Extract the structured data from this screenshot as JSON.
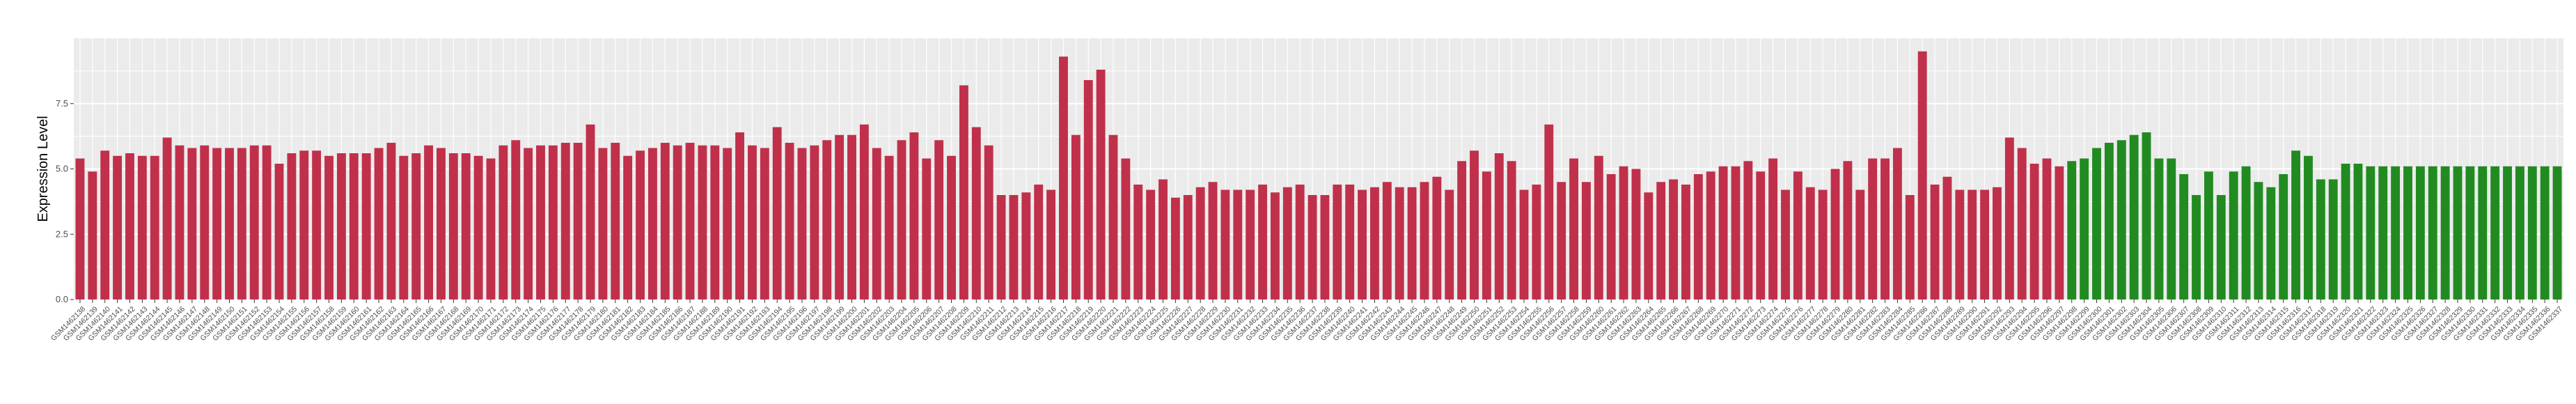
{
  "chart_data": {
    "type": "bar",
    "title": "",
    "xlabel": "",
    "ylabel": "Expression Level",
    "ylim": [
      0,
      10
    ],
    "yticks": [
      "0.0",
      "2.5",
      "5.0",
      "7.5"
    ],
    "grid": true,
    "legend": "none",
    "colors": {
      "group_red": "#c0304a",
      "group_green": "#218b21",
      "panel": "#ebebeb",
      "grid": "#ffffff"
    },
    "categories": [
      "GSM1462138",
      "GSM1462139",
      "GSM1462140",
      "GSM1462141",
      "GSM1462142",
      "GSM1462143",
      "GSM1462144",
      "GSM1462145",
      "GSM1462146",
      "GSM1462147",
      "GSM1462148",
      "GSM1462149",
      "GSM1462150",
      "GSM1462151",
      "GSM1462152",
      "GSM1462153",
      "GSM1462154",
      "GSM1462155",
      "GSM1462156",
      "GSM1462157",
      "GSM1462158",
      "GSM1462159",
      "GSM1462160",
      "GSM1462161",
      "GSM1462162",
      "GSM1462163",
      "GSM1462164",
      "GSM1462165",
      "GSM1462166",
      "GSM1462167",
      "GSM1462168",
      "GSM1462169",
      "GSM1462170",
      "GSM1462171",
      "GSM1462172",
      "GSM1462173",
      "GSM1462174",
      "GSM1462175",
      "GSM1462176",
      "GSM1462177",
      "GSM1462178",
      "GSM1462179",
      "GSM1462180",
      "GSM1462181",
      "GSM1462182",
      "GSM1462183",
      "GSM1462184",
      "GSM1462185",
      "GSM1462186",
      "GSM1462187",
      "GSM1462188",
      "GSM1462189",
      "GSM1462190",
      "GSM1462191",
      "GSM1462192",
      "GSM1462193",
      "GSM1462194",
      "GSM1462195",
      "GSM1462196",
      "GSM1462197",
      "GSM1462198",
      "GSM1462199",
      "GSM1462200",
      "GSM1462201",
      "GSM1462202",
      "GSM1462203",
      "GSM1462204",
      "GSM1462205",
      "GSM1462206",
      "GSM1462207",
      "GSM1462208",
      "GSM1462209",
      "GSM1462210",
      "GSM1462211",
      "GSM1462212",
      "GSM1462213",
      "GSM1462214",
      "GSM1462215",
      "GSM1462216",
      "GSM1462217",
      "GSM1462218",
      "GSM1462219",
      "GSM1462220",
      "GSM1462221",
      "GSM1462222",
      "GSM1462223",
      "GSM1462224",
      "GSM1462225",
      "GSM1462226",
      "GSM1462227",
      "GSM1462228",
      "GSM1462229",
      "GSM1462230",
      "GSM1462231",
      "GSM1462232",
      "GSM1462233",
      "GSM1462234",
      "GSM1462235",
      "GSM1462236",
      "GSM1462237",
      "GSM1462238",
      "GSM1462239",
      "GSM1462240",
      "GSM1462241",
      "GSM1462242",
      "GSM1462243",
      "GSM1462244",
      "GSM1462245",
      "GSM1462246",
      "GSM1462247",
      "GSM1462248",
      "GSM1462249",
      "GSM1462250",
      "GSM1462251",
      "GSM1462252",
      "GSM1462253",
      "GSM1462254",
      "GSM1462255",
      "GSM1462256",
      "GSM1462257",
      "GSM1462258",
      "GSM1462259",
      "GSM1462260",
      "GSM1462261",
      "GSM1462262",
      "GSM1462263",
      "GSM1462264",
      "GSM1462265",
      "GSM1462266",
      "GSM1462267",
      "GSM1462268",
      "GSM1462269",
      "GSM1462270",
      "GSM1462271",
      "GSM1462272",
      "GSM1462273",
      "GSM1462274",
      "GSM1462275",
      "GSM1462276",
      "GSM1462277",
      "GSM1462278",
      "GSM1462279",
      "GSM1462280",
      "GSM1462281",
      "GSM1462282",
      "GSM1462283",
      "GSM1462284",
      "GSM1462285",
      "GSM1462286",
      "GSM1462287",
      "GSM1462288",
      "GSM1462289",
      "GSM1462290",
      "GSM1462291",
      "GSM1462292",
      "GSM1462293",
      "GSM1462294",
      "GSM1462295",
      "GSM1462296",
      "GSM1462297",
      "GSM1462298",
      "GSM1462299",
      "GSM1462300",
      "GSM1462301",
      "GSM1462302",
      "GSM1462303",
      "GSM1462304",
      "GSM1462305",
      "GSM1462306",
      "GSM1462307",
      "GSM1462308",
      "GSM1462309",
      "GSM1462310",
      "GSM1462311",
      "GSM1462312",
      "GSM1462313",
      "GSM1462314",
      "GSM1462315",
      "GSM1462316",
      "GSM1462317",
      "GSM1462318",
      "GSM1462319",
      "GSM1462320",
      "GSM1462321",
      "GSM1462322",
      "GSM1462323",
      "GSM1462324",
      "GSM1462325",
      "GSM1462326",
      "GSM1462327",
      "GSM1462328",
      "GSM1462329",
      "GSM1462330",
      "GSM1462331",
      "GSM1462332",
      "GSM1462333",
      "GSM1462334",
      "GSM1462335",
      "GSM1462336",
      "GSM1462337"
    ],
    "values": [
      5.4,
      4.9,
      5.7,
      5.5,
      5.6,
      5.5,
      5.5,
      6.2,
      5.9,
      5.8,
      5.9,
      5.8,
      5.8,
      5.8,
      5.9,
      5.9,
      5.2,
      5.6,
      5.7,
      5.7,
      5.5,
      5.6,
      5.6,
      5.6,
      5.8,
      6.0,
      5.5,
      5.6,
      5.9,
      5.8,
      5.6,
      5.6,
      5.5,
      5.4,
      5.9,
      6.1,
      5.8,
      5.9,
      5.9,
      6.0,
      6.0,
      6.7,
      5.8,
      6.0,
      5.5,
      5.7,
      5.8,
      6.0,
      5.9,
      6.0,
      5.9,
      5.9,
      5.8,
      6.4,
      5.9,
      5.8,
      6.6,
      6.0,
      5.8,
      5.9,
      6.1,
      6.3,
      6.3,
      6.7,
      5.8,
      5.5,
      6.1,
      6.4,
      5.4,
      6.1,
      5.5,
      8.2,
      6.6,
      5.9,
      4.0,
      4.0,
      4.1,
      4.4,
      4.2,
      9.3,
      6.3,
      8.4,
      8.8,
      6.3,
      5.4,
      4.4,
      4.2,
      4.6,
      3.9,
      4.0,
      4.3,
      4.5,
      4.2,
      4.2,
      4.2,
      4.4,
      4.1,
      4.3,
      4.4,
      4.0,
      4.0,
      4.4,
      4.4,
      4.2,
      4.3,
      4.5,
      4.3,
      4.3,
      4.5,
      4.7,
      4.2,
      5.3,
      5.7,
      4.9,
      5.6,
      5.3,
      4.2,
      4.4,
      6.7,
      4.5,
      5.4,
      4.5,
      5.5,
      4.8,
      5.1,
      5.0,
      4.1,
      4.5,
      4.6,
      4.4,
      4.8,
      4.9,
      5.1,
      5.1,
      5.3,
      4.9,
      5.4,
      4.2,
      4.9,
      4.3,
      4.2,
      5.0,
      5.3,
      4.2,
      5.4,
      5.4,
      5.8,
      4.0,
      9.5,
      4.4,
      4.7,
      4.2,
      4.2,
      4.2,
      4.3,
      6.2,
      5.8,
      5.2,
      5.4,
      5.1,
      5.3,
      5.4,
      5.8,
      6.0,
      6.1,
      6.3,
      6.4,
      5.4,
      5.4,
      4.8,
      4.0,
      4.9,
      4.0,
      4.9,
      5.1,
      4.5,
      4.3,
      4.8,
      5.7,
      5.5,
      4.6,
      4.6,
      5.2,
      5.2,
      5.1,
      5.1,
      5.1,
      5.1,
      5.1,
      5.1,
      5.1,
      5.1,
      5.1,
      5.1,
      5.1,
      5.1,
      5.1,
      5.1,
      5.1,
      5.1
    ],
    "groups": [
      "red",
      "red",
      "red",
      "red",
      "red",
      "red",
      "red",
      "red",
      "red",
      "red",
      "red",
      "red",
      "red",
      "red",
      "red",
      "red",
      "red",
      "red",
      "red",
      "red",
      "red",
      "red",
      "red",
      "red",
      "red",
      "red",
      "red",
      "red",
      "red",
      "red",
      "red",
      "red",
      "red",
      "red",
      "red",
      "red",
      "red",
      "red",
      "red",
      "red",
      "red",
      "red",
      "red",
      "red",
      "red",
      "red",
      "red",
      "red",
      "red",
      "red",
      "red",
      "red",
      "red",
      "red",
      "red",
      "red",
      "red",
      "red",
      "red",
      "red",
      "red",
      "red",
      "red",
      "red",
      "red",
      "red",
      "red",
      "red",
      "red",
      "red",
      "red",
      "red",
      "red",
      "red",
      "red",
      "red",
      "red",
      "red",
      "red",
      "red",
      "red",
      "red",
      "red",
      "red",
      "red",
      "red",
      "red",
      "red",
      "red",
      "red",
      "red",
      "red",
      "red",
      "red",
      "red",
      "red",
      "red",
      "red",
      "red",
      "red",
      "red",
      "red",
      "red",
      "red",
      "red",
      "red",
      "red",
      "red",
      "red",
      "red",
      "red",
      "red",
      "red",
      "red",
      "red",
      "red",
      "red",
      "red",
      "red",
      "red",
      "red",
      "red",
      "red",
      "red",
      "red",
      "red",
      "red",
      "red",
      "red",
      "red",
      "red",
      "red",
      "red",
      "red",
      "red",
      "red",
      "red",
      "red",
      "red",
      "red",
      "red",
      "red",
      "red",
      "red",
      "red",
      "red",
      "red",
      "red",
      "red",
      "red",
      "red",
      "red",
      "red",
      "red",
      "red",
      "red",
      "red",
      "red",
      "red",
      "red",
      "green",
      "green",
      "green",
      "green",
      "green",
      "green",
      "green",
      "green",
      "green",
      "green",
      "green",
      "green",
      "green",
      "green",
      "green",
      "green",
      "green",
      "green",
      "green",
      "green",
      "green",
      "green",
      "green",
      "green",
      "green",
      "green",
      "green",
      "green",
      "green",
      "green",
      "green",
      "green",
      "green",
      "green",
      "green",
      "green",
      "green",
      "green",
      "green",
      "green"
    ]
  }
}
